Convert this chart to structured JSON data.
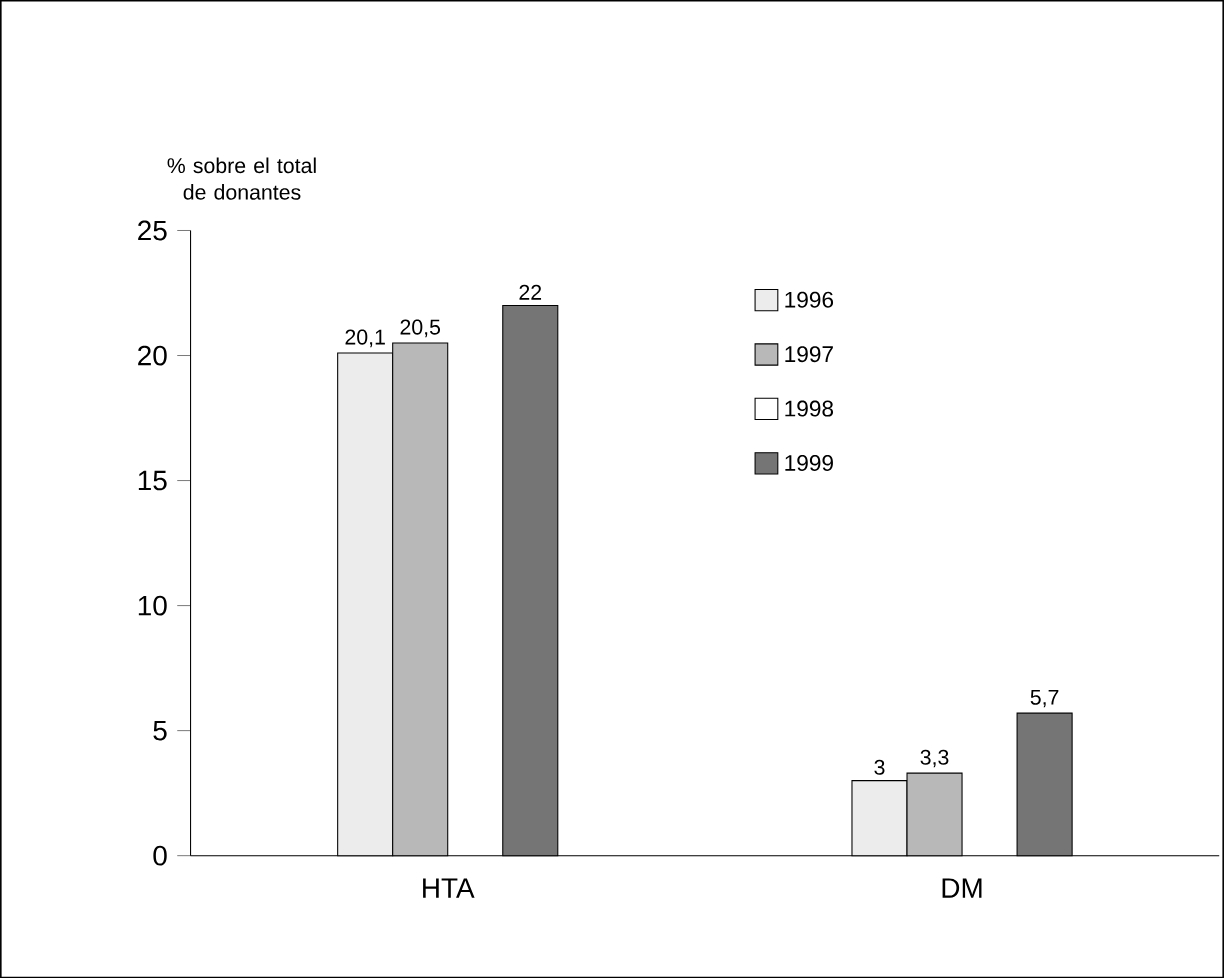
{
  "chart_data": {
    "type": "bar",
    "ylabel": "% sobre el total de donantes",
    "categories": [
      "HTA",
      "DM"
    ],
    "series": [
      {
        "name": "1996",
        "color": "#ececec",
        "values": [
          20.1,
          3
        ],
        "value_labels": [
          "20,1",
          "3"
        ]
      },
      {
        "name": "1997",
        "color": "#b8b8b8",
        "values": [
          20.5,
          3.3
        ],
        "value_labels": [
          "20,5",
          "3,3"
        ]
      },
      {
        "name": "1998",
        "color": "#ffffff",
        "values": [
          null,
          null
        ],
        "value_labels": [
          null,
          null
        ]
      },
      {
        "name": "1999",
        "color": "#757575",
        "values": [
          22,
          5.7
        ],
        "value_labels": [
          "22",
          "5,7"
        ]
      }
    ],
    "ylim": [
      0,
      25
    ],
    "yticks": [
      0,
      5,
      10,
      15,
      20,
      25
    ],
    "grid": false,
    "legend": "top right"
  }
}
